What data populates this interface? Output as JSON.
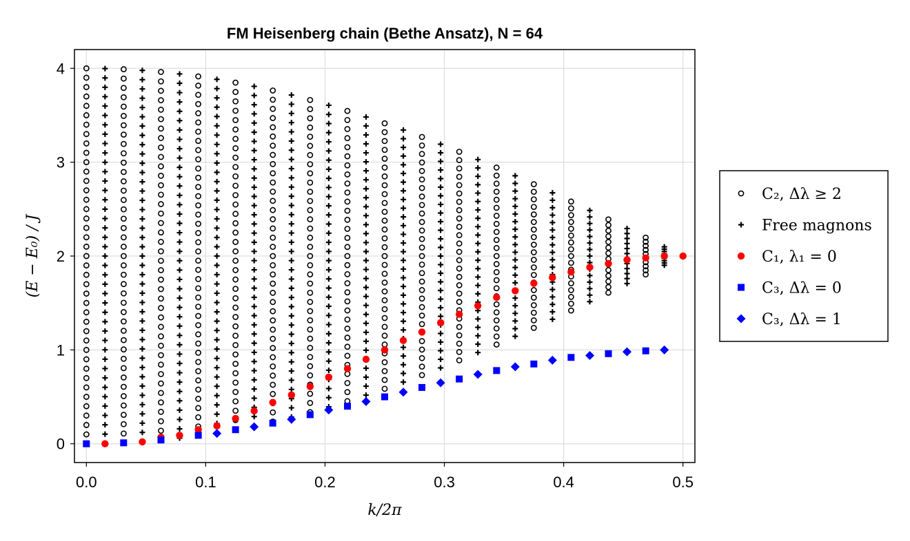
{
  "chart_data": {
    "type": "scatter",
    "title": "FM Heisenberg chain (Bethe Ansatz), N = 64",
    "xlabel": "k/2π",
    "ylabel": "(E − E₀) / J",
    "xlim": [
      -0.01,
      0.51
    ],
    "ylim": [
      -0.2,
      4.2
    ],
    "xticks": [
      0.0,
      0.1,
      0.2,
      0.3,
      0.4,
      0.5
    ],
    "xtick_labels": [
      "0.0",
      "0.1",
      "0.2",
      "0.3",
      "0.4",
      "0.5"
    ],
    "yticks": [
      0,
      1,
      2,
      3,
      4
    ],
    "ytick_labels": [
      "0",
      "1",
      "2",
      "3",
      "4"
    ],
    "grid": true,
    "legend_position": "right",
    "N": 64,
    "series": [
      {
        "name": "C₂, Δλ ≥ 2",
        "marker": "open-circle",
        "color": "#000000",
        "description": "two-magnon continuum states at k = m/64; energies fill band from lower edge to 4·sin(πk)"
      },
      {
        "name": "Free magnons",
        "marker": "plus",
        "color": "#000000",
        "description": "two free-magnon states at odd m"
      },
      {
        "name": "C₁, λ₁ = 0",
        "marker": "filled-circle",
        "color": "#ff0000",
        "x": [
          0.0156,
          0.0469,
          0.0625,
          0.0781,
          0.0938,
          0.1094,
          0.125,
          0.1406,
          0.1562,
          0.1719,
          0.1875,
          0.2031,
          0.2188,
          0.2344,
          0.25,
          0.2656,
          0.2812,
          0.2969,
          0.3125,
          0.3281,
          0.3438,
          0.3594,
          0.375,
          0.3906,
          0.4062,
          0.4219,
          0.4375,
          0.4531,
          0.4688,
          0.4844,
          0.5
        ],
        "y": [
          0.0,
          0.02,
          0.07,
          0.09,
          0.15,
          0.19,
          0.27,
          0.35,
          0.44,
          0.52,
          0.61,
          0.71,
          0.8,
          0.9,
          1.0,
          1.1,
          1.19,
          1.29,
          1.38,
          1.47,
          1.56,
          1.63,
          1.71,
          1.77,
          1.83,
          1.88,
          1.92,
          1.96,
          1.98,
          2.0,
          2.0
        ]
      },
      {
        "name": "C₃, Δλ = 0",
        "marker": "filled-square",
        "color": "#0000ff",
        "x": [
          0.0,
          0.0312,
          0.0625,
          0.0938,
          0.125,
          0.1562,
          0.1875,
          0.2188,
          0.25,
          0.2812,
          0.3125,
          0.3438,
          0.375,
          0.4062,
          0.4375,
          0.4688
        ],
        "y": [
          0.0,
          0.01,
          0.04,
          0.09,
          0.15,
          0.22,
          0.31,
          0.4,
          0.5,
          0.6,
          0.69,
          0.78,
          0.85,
          0.92,
          0.96,
          0.99
        ]
      },
      {
        "name": "C₃, Δλ = 1",
        "marker": "filled-diamond",
        "color": "#0000ff",
        "x": [
          0.1094,
          0.1406,
          0.1719,
          0.2031,
          0.2344,
          0.2656,
          0.2969,
          0.3281,
          0.3594,
          0.3906,
          0.4219,
          0.4531,
          0.4844
        ],
        "y": [
          0.11,
          0.18,
          0.26,
          0.36,
          0.45,
          0.55,
          0.65,
          0.74,
          0.82,
          0.89,
          0.94,
          0.98,
          1.0
        ]
      }
    ]
  }
}
